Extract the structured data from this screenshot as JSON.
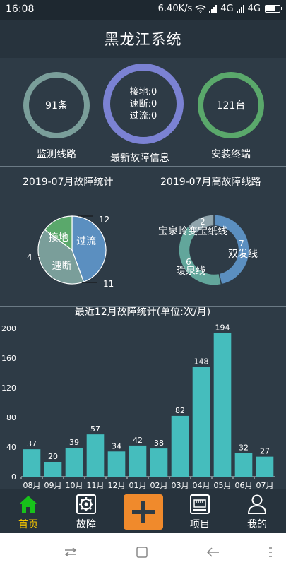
{
  "status": {
    "time": "16:08",
    "speed": "6.40K/s",
    "signal1": "4G",
    "signal2": "4G"
  },
  "header": {
    "title": "黑龙江系统"
  },
  "summary": {
    "lines": {
      "value": "91条",
      "caption": "监测线路"
    },
    "fault": {
      "line1": "接地:0",
      "line2": "速断:0",
      "line3": "过流:0",
      "caption": "最新故障信息"
    },
    "terminals": {
      "value": "121台",
      "caption": "安装终端"
    },
    "colors": {
      "lines": "#7a9e9a",
      "fault": "#7b82d3",
      "terminals": "#5aa86b"
    }
  },
  "panels": {
    "fault_stats_title": "2019-07月故障统计",
    "high_fault_title": "2019-07月高故障线路"
  },
  "chart_data": [
    {
      "type": "pie",
      "title": "2019-07月故障统计",
      "labels": [
        "过流",
        "速断",
        "接地"
      ],
      "values": [
        12,
        11,
        4
      ],
      "colors": [
        "#5b8fc0",
        "#7a9e9a",
        "#5aa86b"
      ]
    },
    {
      "type": "pie",
      "subtype": "donut",
      "title": "2019-07月高故障线路",
      "labels": [
        "双发线",
        "暖泉线",
        "宝泉岭变宝纸线"
      ],
      "values": [
        7,
        6,
        2
      ],
      "colors": [
        "#5b8fc0",
        "#62a69b",
        "#90a4ac"
      ]
    },
    {
      "type": "bar",
      "title": "最近12月故障统计(单位:次/月)",
      "categories": [
        "08月",
        "09月",
        "10月",
        "11月",
        "12月",
        "01月",
        "02月",
        "03月",
        "04月",
        "05月",
        "06月",
        "07月"
      ],
      "values": [
        37,
        20,
        39,
        57,
        34,
        42,
        38,
        82,
        148,
        194,
        32,
        27
      ],
      "yticks": [
        0,
        40,
        80,
        120,
        160,
        200
      ],
      "ylim": [
        0,
        200
      ],
      "color": "#45bdbd"
    }
  ],
  "nav": {
    "home": "首页",
    "fault": "故障",
    "project": "项目",
    "mine": "我的",
    "active_color": "#f4c400"
  }
}
